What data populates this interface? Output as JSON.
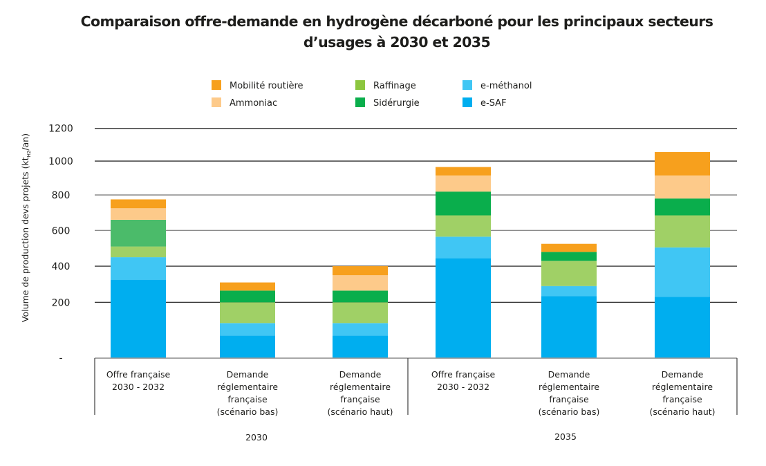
{
  "chart_data": {
    "type": "bar",
    "stacked": true,
    "title": "Comparaison offre-demande en hydrogène décarboné pour les principaux secteurs d’usages à 2030 et 2035",
    "title_lines": [
      "Comparaison offre-demande en hydrogène décarboné pour les principaux secteurs",
      "d’usages à 2030 et 2035"
    ],
    "ylabel": "Volume de production devs projets (kt",
    "ylabel_sub": "H2",
    "ylabel_suffix": "/an)",
    "xlabel": "",
    "ylim": [
      0,
      1200
    ],
    "yticks": [
      {
        "value": 1200,
        "label": "1200"
      },
      {
        "value": 1000,
        "label": "1000"
      },
      {
        "value": 800,
        "label": "800"
      },
      {
        "value": 600,
        "label": "600"
      },
      {
        "value": 400,
        "label": "400"
      },
      {
        "value": 200,
        "label": "200"
      },
      {
        "value": 0,
        "label": "-"
      }
    ],
    "grid": true,
    "legend_position": "top",
    "groups": [
      {
        "label": "2030",
        "categories": [
          0,
          1,
          2
        ]
      },
      {
        "label": "2035",
        "categories": [
          3,
          4,
          5
        ]
      }
    ],
    "categories": [
      [
        "Offre française",
        "2030 - 2032"
      ],
      [
        "Demande",
        "réglementaire",
        "française",
        "(scénario bas)"
      ],
      [
        "Demande",
        "réglementaire",
        "française",
        "(scénario haut)"
      ],
      [
        "Offre française",
        "2030 - 2032"
      ],
      [
        "Demande",
        "réglementaire",
        "française",
        "(scénario bas)"
      ],
      [
        "Demande",
        "réglementaire",
        "française",
        "(scénario haut)"
      ]
    ],
    "series": [
      {
        "name": "e-SAF",
        "color": "#00aeef",
        "values": [
          325,
          80,
          80,
          445,
          235,
          230
        ]
      },
      {
        "name": "e-méthanol",
        "color": "#40c6f4",
        "values": [
          125,
          45,
          45,
          120,
          55,
          275
        ]
      },
      {
        "name": "Raffinage",
        "color": "#a0d066",
        "values": [
          60,
          75,
          75,
          120,
          140,
          180
        ]
      },
      {
        "name": "Sidérurgie",
        "color": "#0aae4c",
        "bar_colors": [
          "#4bbb6a",
          null,
          null,
          null,
          null,
          null
        ],
        "values": [
          150,
          65,
          65,
          135,
          50,
          95
        ]
      },
      {
        "name": "Ammoniac",
        "color": "#fdca8a",
        "values": [
          65,
          0,
          85,
          95,
          0,
          135
        ]
      },
      {
        "name": "Mobilité routière",
        "color": "#f7a01d",
        "values": [
          50,
          45,
          50,
          50,
          45,
          140
        ]
      }
    ],
    "legend": [
      {
        "name": "Mobilité routière",
        "color": "#f7a01d"
      },
      {
        "name": "Ammoniac",
        "color": "#fdca8a"
      },
      {
        "name": "Raffinage",
        "color": "#8cc63f"
      },
      {
        "name": "Sidérurgie",
        "color": "#0aae4c"
      },
      {
        "name": "e-méthanol",
        "color": "#40c6f4"
      },
      {
        "name": "e-SAF",
        "color": "#00aeef"
      }
    ]
  }
}
